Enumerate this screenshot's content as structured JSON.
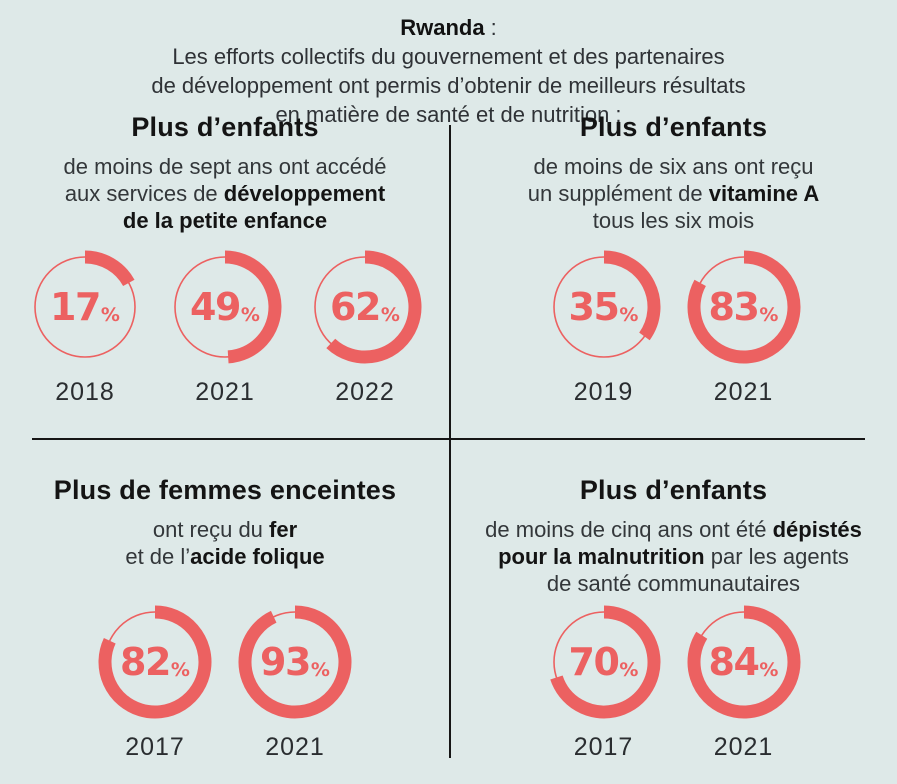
{
  "theme": {
    "background": "#dee9e8",
    "accent": "#ec6161",
    "text_dark": "#141414",
    "text_body": "#33373a",
    "divider": "#161616"
  },
  "header": {
    "country": "Rwanda",
    "colon": " :",
    "lines": [
      "Les efforts collectifs du gouvernement et des partenaires",
      "de développement ont permis d’obtenir de meilleurs résultats",
      "en matière de santé et de nutrition :"
    ]
  },
  "quadrants": [
    {
      "id": "top-left",
      "title": "Plus d’enfants",
      "description": [
        [
          {
            "t": "de moins de sept ans ont accédé",
            "b": false
          }
        ],
        [
          {
            "t": "aux services de ",
            "b": false
          },
          {
            "t": "développement",
            "b": true
          }
        ],
        [
          {
            "t": "de la petite enfance",
            "b": true
          }
        ]
      ]
    },
    {
      "id": "top-right",
      "title": "Plus d’enfants",
      "description": [
        [
          {
            "t": "de moins de six ans ont reçu",
            "b": false
          }
        ],
        [
          {
            "t": "un supplément de ",
            "b": false
          },
          {
            "t": "vitamine A",
            "b": true
          }
        ],
        [
          {
            "t": "tous les six mois",
            "b": false
          }
        ]
      ]
    },
    {
      "id": "bottom-left",
      "title": "Plus de femmes enceintes",
      "description": [
        [
          {
            "t": "ont reçu du ",
            "b": false
          },
          {
            "t": "fer",
            "b": true
          }
        ],
        [
          {
            "t": "et de l’",
            "b": false
          },
          {
            "t": "acide folique",
            "b": true
          }
        ]
      ]
    },
    {
      "id": "bottom-right",
      "title": "Plus d’enfants",
      "description": [
        [
          {
            "t": "de moins de cinq ans ont été ",
            "b": false
          },
          {
            "t": "dépistés",
            "b": true
          }
        ],
        [
          {
            "t": "pour la malnutrition",
            "b": true
          },
          {
            "t": " par les agents",
            "b": false
          }
        ],
        [
          {
            "t": "de santé communautaires",
            "b": false
          }
        ]
      ]
    }
  ],
  "chart_data": [
    {
      "type": "pie",
      "variant": "donut-progress",
      "title": "Plus d’enfants de moins de sept ans ont accédé aux services de développement de la petite enfance",
      "categories": [
        "2018",
        "2021",
        "2022"
      ],
      "values": [
        17,
        49,
        62
      ],
      "unit": "%",
      "color": "#ec6161",
      "start_angle_deg": 0,
      "direction": "clockwise"
    },
    {
      "type": "pie",
      "variant": "donut-progress",
      "title": "Plus d’enfants de moins de six ans ont reçu un supplément de vitamine A tous les six mois",
      "categories": [
        "2019",
        "2021"
      ],
      "values": [
        35,
        83
      ],
      "unit": "%",
      "color": "#ec6161",
      "start_angle_deg": 0,
      "direction": "clockwise"
    },
    {
      "type": "pie",
      "variant": "donut-progress",
      "title": "Plus de femmes enceintes ont reçu du fer et de l’acide folique",
      "categories": [
        "2017",
        "2021"
      ],
      "values": [
        82,
        93
      ],
      "unit": "%",
      "color": "#ec6161",
      "start_angle_deg": 0,
      "direction": "clockwise"
    },
    {
      "type": "pie",
      "variant": "donut-progress",
      "title": "Plus d’enfants de moins de cinq ans ont été dépistés pour la malnutrition par les agents de santé communautaires",
      "categories": [
        "2017",
        "2021"
      ],
      "values": [
        70,
        84
      ],
      "unit": "%",
      "color": "#ec6161",
      "start_angle_deg": 0,
      "direction": "clockwise"
    }
  ]
}
